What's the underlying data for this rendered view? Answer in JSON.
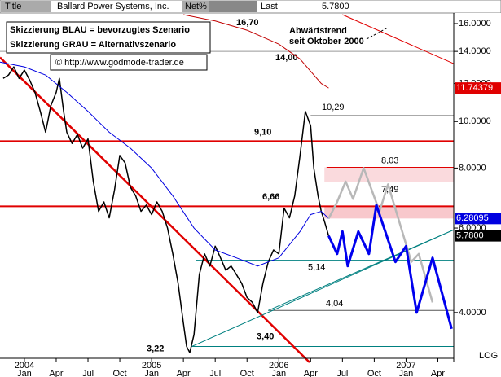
{
  "header": {
    "title_label": "Title",
    "name": "Ballard Power Systems, Inc.",
    "net_label": "Net%",
    "last_label": "Last",
    "last": "5.7800"
  },
  "chart_data": {
    "type": "line",
    "log": true,
    "notes": [
      "Skizzierung BLAU = bevorzugtes Szenario",
      "Skizzierung GRAU = Alternativszenario",
      "© http://www.godmode-trader.de"
    ],
    "trend_note": [
      "Abwärtstrend",
      "seit Oktober 2000"
    ],
    "xlim": [
      -2.3,
      40.5
    ],
    "xticks": [
      {
        "value": 0,
        "label": "Jan",
        "year": "2004"
      },
      {
        "value": 3,
        "label": "Apr"
      },
      {
        "value": 6,
        "label": "Jul"
      },
      {
        "value": 9,
        "label": "Oct"
      },
      {
        "value": 12,
        "label": "Jan",
        "year": "2005"
      },
      {
        "value": 15,
        "label": "Apr"
      },
      {
        "value": 18,
        "label": "Jul"
      },
      {
        "value": 21,
        "label": "Oct"
      },
      {
        "value": 24,
        "label": "Jan",
        "year": "2006"
      },
      {
        "value": 27,
        "label": "Apr"
      },
      {
        "value": 30,
        "label": "Jul"
      },
      {
        "value": 33,
        "label": "Oct"
      },
      {
        "value": 36,
        "label": "Jan",
        "year": "2007"
      },
      {
        "value": 39,
        "label": "Apr"
      }
    ],
    "ylim": [
      3.15,
      16.7
    ],
    "yticks": [
      {
        "value": 16,
        "label": "16.0000"
      },
      {
        "value": 14,
        "label": "14.0000"
      },
      {
        "value": 12,
        "label": "12.0000"
      },
      {
        "value": 10,
        "label": "10.0000"
      },
      {
        "value": 8,
        "label": "8.0000"
      },
      {
        "value": 6,
        "label": "6.0000"
      },
      {
        "value": 4,
        "label": "4.0000"
      }
    ],
    "scale_label": "LOG",
    "tags": [
      {
        "value": 11.74379,
        "label": "11.74379",
        "color": "#e00000"
      },
      {
        "value": 6.28095,
        "label": "6.28095",
        "color": "#0000e0"
      },
      {
        "value": 5.78,
        "label": "5.7800",
        "color": "#000000"
      }
    ],
    "series": [
      {
        "color": "#000000",
        "x": [
          -2,
          -1.5,
          -1,
          -0.5,
          0,
          0.5,
          1,
          1.5,
          2,
          2.5,
          3,
          3.3,
          3.7,
          4,
          4.5,
          5,
          5.5,
          6,
          6.5,
          7,
          7.5,
          8,
          8.5,
          9,
          9.5,
          10,
          10.5,
          11,
          11.5,
          12,
          12.5,
          13,
          13.5,
          14,
          14.5,
          15,
          15.3,
          15.6,
          16,
          16.5,
          17,
          17.5,
          18,
          18.5,
          19,
          19.5,
          20,
          20.5,
          21,
          21.5,
          22,
          22.5,
          23,
          23.5,
          24,
          24.5,
          25,
          25.5,
          26,
          26.5,
          27,
          27.3,
          27.7,
          28,
          28.3,
          28.7
        ],
        "values": [
          12.3,
          12.5,
          13,
          12.3,
          12.8,
          12.2,
          11.5,
          10.5,
          9.5,
          10.8,
          11.5,
          12.3,
          10.5,
          9.5,
          9,
          9.4,
          8.8,
          9.2,
          7.5,
          6.5,
          6.8,
          6.3,
          7.2,
          8.5,
          8.2,
          7.3,
          7,
          6.5,
          6.7,
          6.4,
          6.8,
          6.5,
          6,
          5.3,
          4.6,
          3.8,
          3.4,
          3.3,
          3.6,
          4.8,
          5.3,
          5,
          5.5,
          5.2,
          4.9,
          5,
          4.8,
          4.6,
          4.3,
          4.2,
          4,
          4.6,
          5.1,
          5.4,
          5.3,
          6.6,
          6.3,
          7,
          8.5,
          10.5,
          9.8,
          8,
          7,
          6.5,
          6.2,
          5.78
        ]
      },
      {
        "color": "#0000e0",
        "x": [
          -2.3,
          0,
          2,
          4,
          6,
          8,
          10,
          12,
          14,
          16,
          18,
          20,
          22,
          24,
          26,
          27,
          28,
          28.7
        ],
        "values": [
          13.3,
          13,
          12.5,
          11.5,
          10.5,
          9.5,
          8.8,
          8,
          7,
          6,
          5.4,
          5.2,
          5,
          5.2,
          5.9,
          6.4,
          6.5,
          6.28095
        ]
      },
      {
        "color": "#c00000",
        "x": [
          15,
          18,
          21,
          24,
          26,
          28,
          28.7
        ],
        "values": [
          16.7,
          16.2,
          15.5,
          14.5,
          13.5,
          12,
          11.74379
        ]
      },
      {
        "color": "#b8b8b8",
        "x": [
          28.7,
          29.5,
          30.3,
          31,
          32,
          33.5,
          34.3,
          36.5,
          37.2,
          38.5
        ],
        "values": [
          6.28,
          6.8,
          7.5,
          6.9,
          8,
          6.5,
          7.4,
          5.1,
          5.3,
          4.2
        ]
      },
      {
        "color": "#0000ee",
        "x": [
          28.7,
          29.5,
          30,
          30.5,
          31.5,
          32.5,
          33.2,
          35,
          36,
          37,
          38.5,
          40.3
        ],
        "values": [
          5.78,
          5.3,
          5.9,
          5,
          5.9,
          5.3,
          6.7,
          5.1,
          5.5,
          4,
          5.2,
          3.7
        ]
      }
    ],
    "lines": [
      {
        "color": "#e00000",
        "x": [
          -2.3,
          26.9
        ],
        "values": [
          13.6,
          3.15
        ]
      },
      {
        "color": "#e00000",
        "x": [
          30,
          40.5
        ],
        "values": [
          16.7,
          13.2
        ]
      },
      {
        "color": "#008080",
        "x": [
          15.8,
          40.5
        ],
        "values": [
          3.4,
          5.95
        ]
      },
      {
        "color": "#008080",
        "x": [
          23,
          40.5
        ],
        "values": [
          4.04,
          5.95
        ]
      }
    ],
    "levels": [
      {
        "value": 16.7,
        "label": "16,70"
      },
      {
        "value": 14,
        "label": "14,00",
        "color": "#999999"
      },
      {
        "value": 10.29,
        "label": "10,29",
        "color": "#555555"
      },
      {
        "value": 9.1,
        "label": "9,10",
        "color": "#e00000"
      },
      {
        "value": 8.03,
        "label": "8,03",
        "color": "#e00000"
      },
      {
        "value": 7.49,
        "label": "7,49"
      },
      {
        "value": 6.66,
        "label": "6,66",
        "color": "#e00000"
      },
      {
        "value": 5.14,
        "label": "5,14",
        "color": "#008080"
      },
      {
        "value": 4.04,
        "label": "4,04",
        "color": "#555555"
      },
      {
        "value": 3.4,
        "label": "3,40",
        "color": "#008080"
      },
      {
        "value": 3.22,
        "label": "3,22"
      }
    ],
    "zones": [
      {
        "from": 7.49,
        "to": 8.03,
        "color": "#fadadd"
      },
      {
        "from": 6.28095,
        "to": 6.66,
        "color": "#f8c8cc"
      }
    ]
  }
}
